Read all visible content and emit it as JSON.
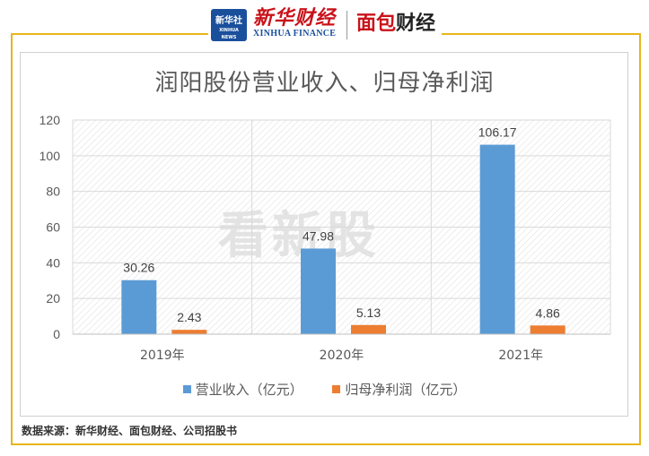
{
  "header": {
    "logo_xinhuashe": "新华社",
    "logo_xinhuashe_en": "XINHUA NEWS",
    "logo_xinhua_finance_cn": "新华财经",
    "logo_xinhua_finance_en": "XINHUA FINANCE",
    "logo_mianbao_1": "面包",
    "logo_mianbao_2": "财经"
  },
  "watermark": "看新股",
  "source_note": "数据来源：新华财经、面包财经、公司招股书",
  "colors": {
    "revenue": "#5b9bd5",
    "net_profit": "#ed7d31",
    "frame": "#e8b51a"
  },
  "chart_data": {
    "type": "bar",
    "title": "润阳股份营业收入、归母净利润",
    "categories": [
      "2019年",
      "2020年",
      "2021年"
    ],
    "series": [
      {
        "name": "营业收入（亿元）",
        "values": [
          30.26,
          47.98,
          106.17
        ]
      },
      {
        "name": "归母净利润（亿元）",
        "values": [
          2.43,
          5.13,
          4.86
        ]
      }
    ],
    "data_labels": [
      [
        "30.26",
        "47.98",
        "106.17"
      ],
      [
        "2.43",
        "5.13",
        "4.86"
      ]
    ],
    "ylim": [
      0,
      120
    ],
    "yticks": [
      0,
      20,
      40,
      60,
      80,
      100,
      120
    ],
    "xlabel": "",
    "ylabel": "",
    "grid": true,
    "legend_position": "bottom"
  }
}
